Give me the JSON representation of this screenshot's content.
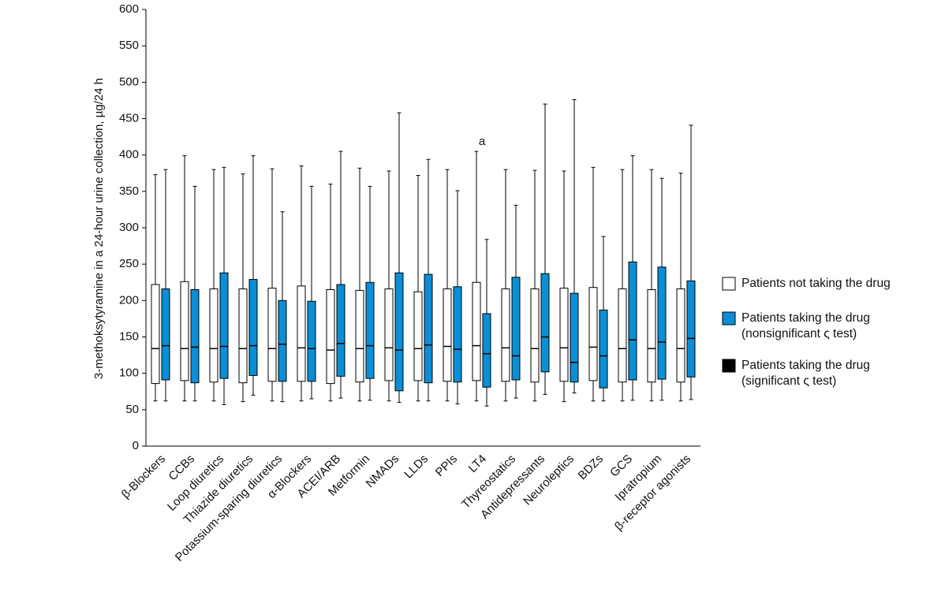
{
  "chart_data": {
    "type": "box",
    "y_label": "3-methoksytyramine in a 24-hour urine collection, µg/24 h",
    "categories": [
      "β-Blockers",
      "CCBs",
      "Loop diuretics",
      "Thiazide diuretics",
      "Potassium-sparing diuretics",
      "α-Blockers",
      "ACEI/ARB",
      "Metformin",
      "NMADs",
      "LLDs",
      "PPIs",
      "LT4",
      "Thyreostatics",
      "Antidepressants",
      "Neuroleptics",
      "BDZs",
      "GCS",
      "Ipratropium",
      "β-receptor agonists"
    ],
    "ylim": [
      0,
      600
    ],
    "yticks": [
      0,
      50,
      100,
      150,
      200,
      250,
      300,
      350,
      400,
      450,
      500,
      550,
      600
    ],
    "series": [
      {
        "name": "Patients not taking the drug",
        "color": "#ffffff",
        "low": [
          62,
          62,
          62,
          61,
          62,
          62,
          62,
          62,
          62,
          62,
          62,
          62,
          62,
          62,
          61,
          62,
          62,
          62,
          62
        ],
        "q1": [
          86,
          90,
          88,
          87,
          89,
          89,
          86,
          88,
          90,
          90,
          89,
          90,
          89,
          88,
          89,
          90,
          88,
          88,
          88
        ],
        "median": [
          134,
          134,
          134,
          134,
          134,
          135,
          132,
          134,
          135,
          134,
          137,
          138,
          135,
          134,
          135,
          136,
          134,
          134,
          134
        ],
        "q3": [
          222,
          226,
          216,
          216,
          217,
          220,
          215,
          214,
          216,
          212,
          216,
          225,
          216,
          216,
          217,
          218,
          216,
          215,
          216
        ],
        "high": [
          373,
          399,
          380,
          374,
          381,
          385,
          360,
          382,
          378,
          372,
          380,
          405,
          380,
          379,
          378,
          383,
          380,
          380,
          375
        ]
      },
      {
        "name": "Patients taking the drug (nonsignificant ς test)",
        "color": "#0a8fd6",
        "low": [
          62,
          62,
          57,
          70,
          61,
          65,
          66,
          63,
          60,
          62,
          58,
          55,
          66,
          71,
          73,
          62,
          63,
          63,
          64
        ],
        "q1": [
          91,
          87,
          93,
          97,
          89,
          89,
          96,
          93,
          76,
          87,
          88,
          81,
          91,
          102,
          88,
          80,
          91,
          92,
          95
        ],
        "median": [
          138,
          136,
          137,
          138,
          140,
          134,
          141,
          138,
          132,
          139,
          133,
          127,
          124,
          150,
          115,
          124,
          146,
          143,
          148
        ],
        "q3": [
          216,
          215,
          238,
          229,
          200,
          199,
          222,
          225,
          238,
          236,
          219,
          182,
          232,
          237,
          210,
          187,
          253,
          246,
          227
        ],
        "high": [
          380,
          357,
          383,
          399,
          322,
          357,
          405,
          357,
          458,
          394,
          351,
          284,
          331,
          470,
          476,
          288,
          399,
          368,
          441
        ]
      },
      {
        "name": "Patients taking the drug (significant ς test)",
        "color": "#000000"
      }
    ],
    "annotations": [
      {
        "text": "a",
        "category": 11,
        "series": 0
      }
    ]
  }
}
